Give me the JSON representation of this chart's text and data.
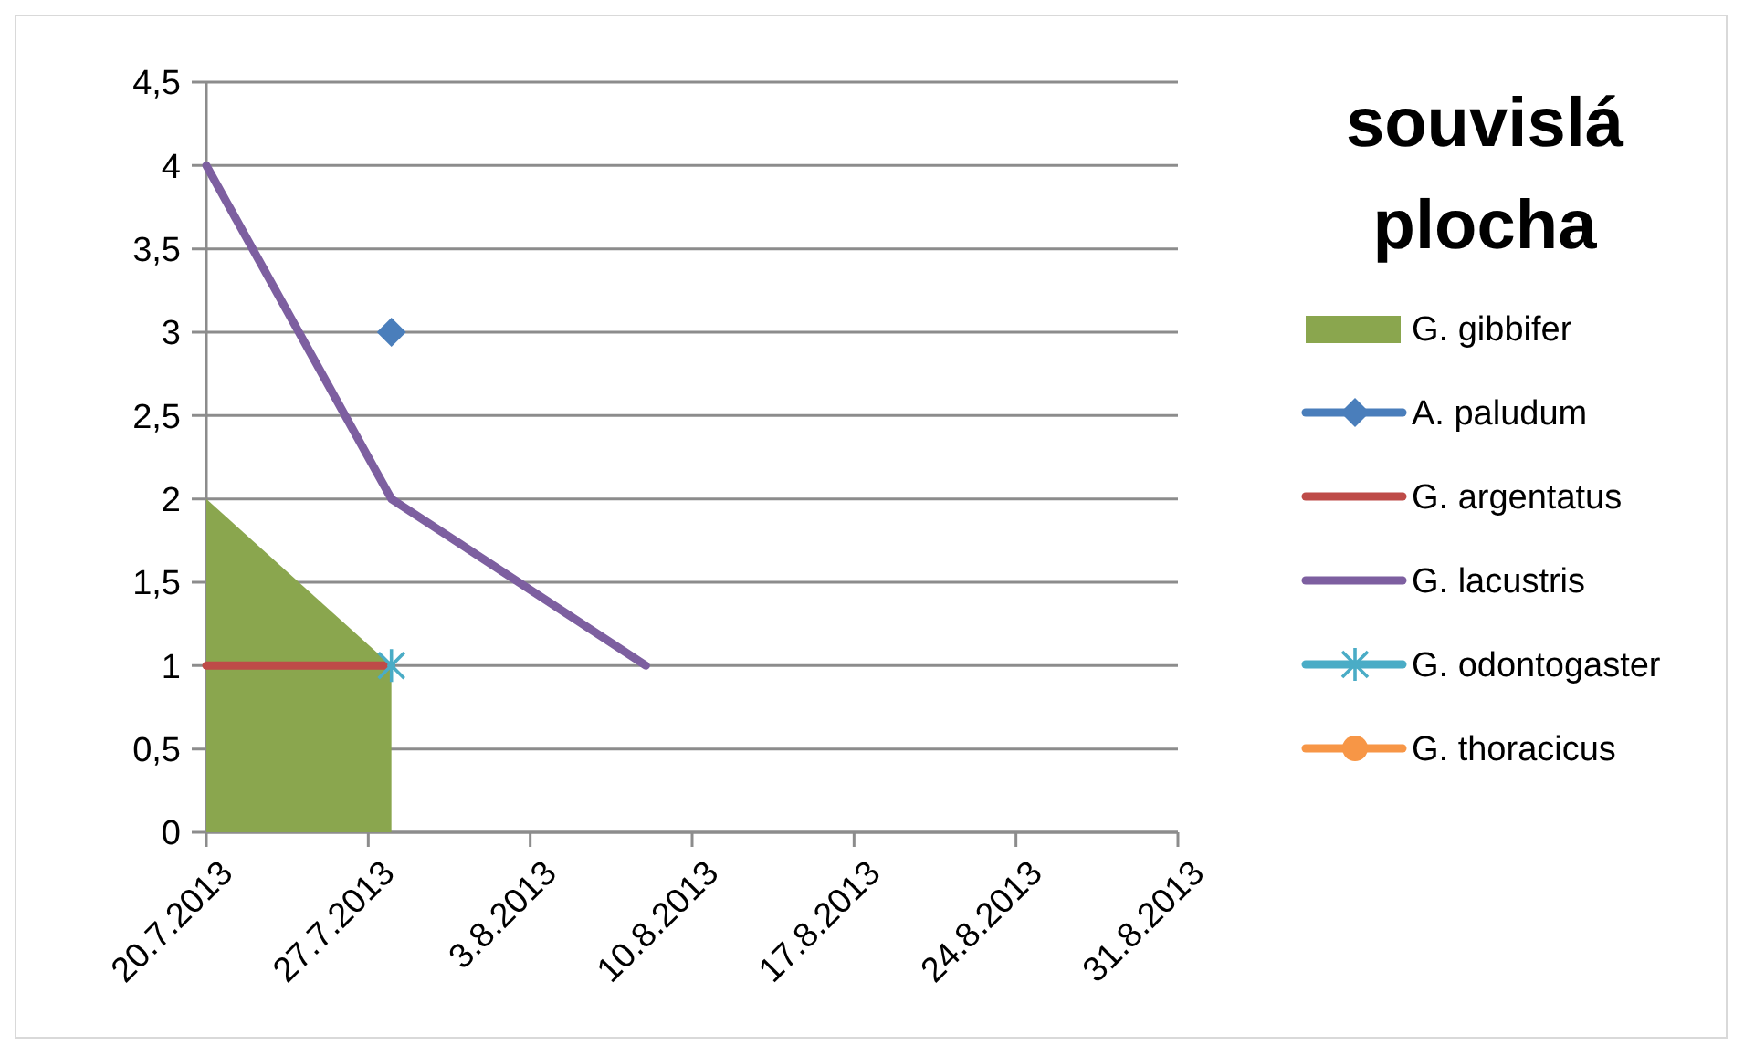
{
  "chart_data": {
    "type": "line",
    "legend_title": "souvislá plocha",
    "x": [
      "2013-07-20",
      "2013-07-28",
      "2013-08-08"
    ],
    "xlim": [
      "2013-07-20",
      "2013-08-31"
    ],
    "xticks": [
      {
        "value": "2013-07-20",
        "label": "20.7.2013"
      },
      {
        "value": "2013-07-27",
        "label": "27.7.2013"
      },
      {
        "value": "2013-08-03",
        "label": "3.8.2013"
      },
      {
        "value": "2013-08-10",
        "label": "10.8.2013"
      },
      {
        "value": "2013-08-17",
        "label": "17.8.2013"
      },
      {
        "value": "2013-08-24",
        "label": "24.8.2013"
      },
      {
        "value": "2013-08-31",
        "label": "31.8.2013"
      }
    ],
    "ylim": [
      0,
      4.5
    ],
    "yticks": [
      0,
      {
        "value": 0.5,
        "label": "0,5"
      },
      1,
      {
        "value": 1.5,
        "label": "1,5"
      },
      2,
      {
        "value": 2.5,
        "label": "2,5"
      },
      3,
      {
        "value": 3.5,
        "label": "3,5"
      },
      4,
      {
        "value": 4.5,
        "label": "4,5"
      }
    ],
    "grid": "y",
    "legend": "right",
    "series": [
      {
        "name": "G. gibbifer",
        "type": "area",
        "color": "#8aa64e",
        "values": [
          2,
          1,
          null
        ]
      },
      {
        "name": "A. paludum",
        "color": "#4a7ebb",
        "marker": "diamond",
        "values": [
          null,
          3,
          null
        ]
      },
      {
        "name": "G. argentatus",
        "color": "#be4b48",
        "values": [
          1,
          1,
          null
        ]
      },
      {
        "name": "G. lacustris",
        "color": "#7d5fa0",
        "values": [
          4,
          2,
          1
        ]
      },
      {
        "name": "G. odontogaster",
        "color": "#4aacc6",
        "marker": "cross",
        "values": [
          null,
          1,
          null
        ]
      },
      {
        "name": "G. thoracicus",
        "color": "#f79646",
        "marker": "circle",
        "values": [
          null,
          null,
          null
        ]
      }
    ]
  }
}
